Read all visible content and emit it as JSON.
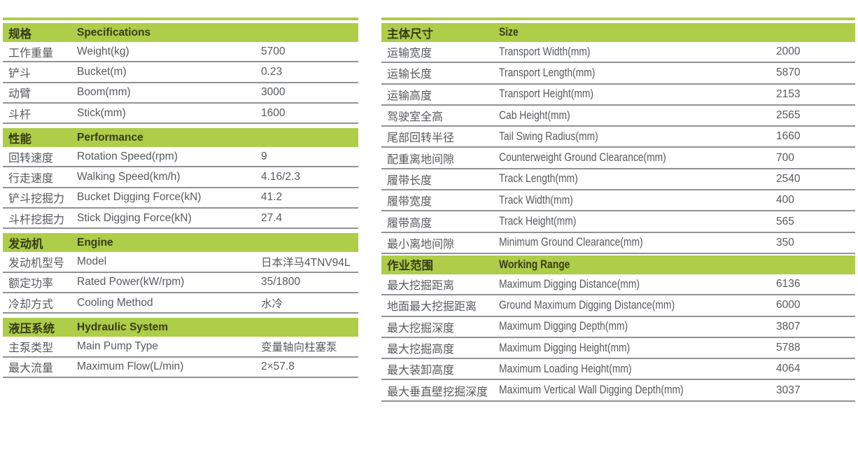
{
  "colors": {
    "header_green": "#aecd48",
    "divider": "#8f9296",
    "body_text": "#58595b",
    "header_text": "#363b1a",
    "background": "#ffffff"
  },
  "tables": [
    {
      "id": "left",
      "sections": [
        {
          "header": {
            "zh": "规格",
            "en": "Specifications"
          },
          "rows": [
            {
              "zh": "工作重量",
              "en": "Weight(kg)",
              "value": "5700"
            },
            {
              "zh": "铲斗",
              "en": "Bucket(m)",
              "value": "0.23"
            },
            {
              "zh": "动臂",
              "en": "Boom(mm)",
              "value": "3000"
            },
            {
              "zh": "斗杆",
              "en": "Stick(mm)",
              "value": "1600"
            }
          ]
        },
        {
          "header": {
            "zh": "性能",
            "en": "Performance"
          },
          "rows": [
            {
              "zh": "回转速度",
              "en": "Rotation Speed(rpm)",
              "value": "9"
            },
            {
              "zh": "行走速度",
              "en": "Walking Speed(km/h)",
              "value": "4.16/2.3"
            },
            {
              "zh": "铲斗挖掘力",
              "en": "Bucket Digging Force(kN)",
              "value": "41.2"
            },
            {
              "zh": "斗杆挖掘力",
              "en": "Stick Digging Force(kN)",
              "value": "27.4"
            }
          ]
        },
        {
          "header": {
            "zh": "发动机",
            "en": "Engine"
          },
          "rows": [
            {
              "zh": "发动机型号",
              "en": "Model",
              "value": "日本洋马4TNV94L"
            },
            {
              "zh": "额定功率",
              "en": "Rated Power(kW/rpm)",
              "value": "35/1800"
            },
            {
              "zh": "冷却方式",
              "en": "Cooling Method",
              "value": "水冷"
            }
          ]
        },
        {
          "header": {
            "zh": "液压系统",
            "en": "Hydraulic System"
          },
          "rows": [
            {
              "zh": "主泵类型",
              "en": "Main Pump Type",
              "value": "变量轴向柱塞泵"
            },
            {
              "zh": "最大流量",
              "en": "Maximum Flow(L/min)",
              "value": "2×57.8"
            }
          ]
        }
      ]
    },
    {
      "id": "right",
      "sections": [
        {
          "header": {
            "zh": "主体尺寸",
            "en": "Size"
          },
          "rows": [
            {
              "zh": "运输宽度",
              "en": "Transport Width(mm)",
              "value": "2000"
            },
            {
              "zh": "运输长度",
              "en": "Transport Length(mm)",
              "value": "5870"
            },
            {
              "zh": "运输高度",
              "en": "Transport Height(mm)",
              "value": "2153"
            },
            {
              "zh": "驾驶室全高",
              "en": "Cab Height(mm)",
              "value": "2565"
            },
            {
              "zh": "尾部回转半径",
              "en": "Tail Swing Radius(mm)",
              "value": "1660"
            },
            {
              "zh": "配重离地间隙",
              "en": "Counterweight Ground Clearance(mm)",
              "value": "700"
            },
            {
              "zh": "履带长度",
              "en": "Track Length(mm)",
              "value": "2540"
            },
            {
              "zh": "履带宽度",
              "en": "Track Width(mm)",
              "value": "400"
            },
            {
              "zh": "履带高度",
              "en": "Track Height(mm)",
              "value": "565"
            },
            {
              "zh": "最小离地间隙",
              "en": "Minimum Ground Clearance(mm)",
              "value": "350"
            }
          ]
        },
        {
          "header": {
            "zh": "作业范围",
            "en": "Working Range"
          },
          "rows": [
            {
              "zh": "最大挖掘距离",
              "en": "Maximum Digging Distance(mm)",
              "value": "6136"
            },
            {
              "zh": "地面最大挖掘距离",
              "en": "Ground Maximum Digging Distance(mm)",
              "value": "6000"
            },
            {
              "zh": "最大挖掘深度",
              "en": "Maximum Digging Depth(mm)",
              "value": "3807"
            },
            {
              "zh": "最大挖掘高度",
              "en": "Maximum Digging Height(mm)",
              "value": "5788"
            },
            {
              "zh": "最大装卸高度",
              "en": "Maximum Loading Height(mm)",
              "value": "4064"
            },
            {
              "zh": "最大垂直壁挖掘深度",
              "en": "Maximum Vertical Wall Digging Depth(mm)",
              "value": "3037"
            }
          ]
        }
      ]
    }
  ]
}
